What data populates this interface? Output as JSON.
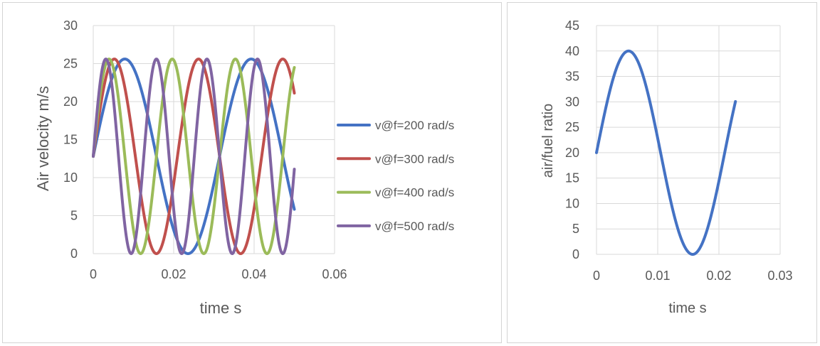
{
  "chart_data": [
    {
      "type": "line",
      "title": "",
      "xlabel": "time s",
      "ylabel": "Air velocity m/s",
      "xlim": [
        0,
        0.06
      ],
      "ylim": [
        0,
        30
      ],
      "x_ticks": [
        "0",
        "0.02",
        "0.04",
        "0.06"
      ],
      "y_ticks": [
        "0",
        "5",
        "10",
        "15",
        "20",
        "25",
        "30"
      ],
      "grid": true,
      "legend_position": "right",
      "series_formula": "v = 12.8 + 12.8*sin(f*t)",
      "x_range": [
        0,
        0.05
      ],
      "series": [
        {
          "name": "v@f=200 rad/s",
          "f": 200,
          "color": "#4472C4"
        },
        {
          "name": "v@f=300 rad/s",
          "f": 300,
          "color": "#C0504D"
        },
        {
          "name": "v@f=400 rad/s",
          "f": 400,
          "color": "#9BBB59"
        },
        {
          "name": "v@f=500 rad/s",
          "f": 500,
          "color": "#8064A2"
        }
      ]
    },
    {
      "type": "line",
      "title": "",
      "xlabel": "time s",
      "ylabel": "air/fuel ratio",
      "xlim": [
        0,
        0.03
      ],
      "ylim": [
        0,
        45
      ],
      "x_ticks": [
        "0",
        "0.01",
        "0.02",
        "0.03"
      ],
      "y_ticks": [
        "0",
        "5",
        "10",
        "15",
        "20",
        "25",
        "30",
        "35",
        "40",
        "45"
      ],
      "grid": true,
      "series_formula": "a = 20 + 20*sin(f*t)",
      "x_range": [
        0,
        0.0227
      ],
      "series": [
        {
          "name": "air/fuel ratio",
          "f": 300,
          "color": "#4472C4"
        }
      ]
    }
  ]
}
